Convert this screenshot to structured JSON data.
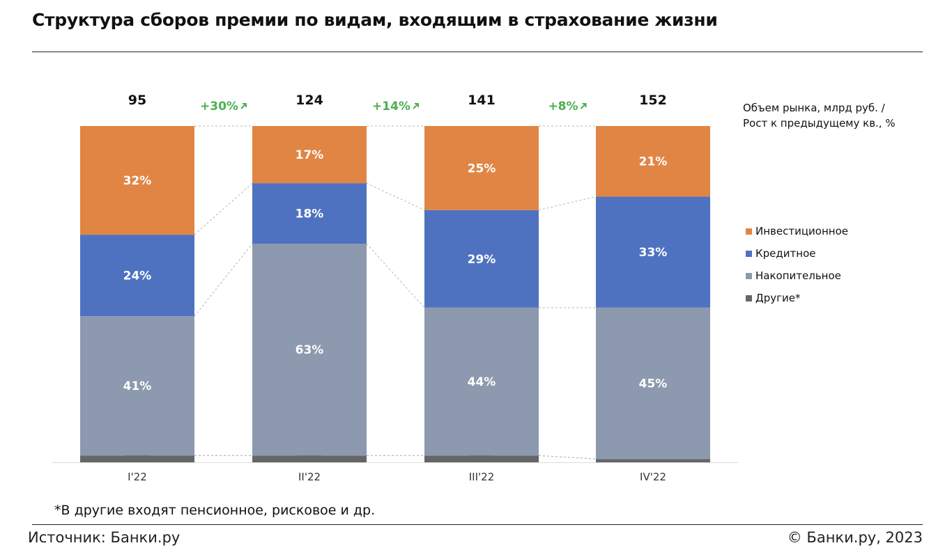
{
  "header": {
    "title": "Структура сборов премии по видам, входящим в страхование жизни"
  },
  "legend": {
    "title_line1": "Объем рынка, млрд руб. /",
    "title_line2": "Рост к предыдущему кв., %",
    "items": [
      {
        "label": "Инвестиционное",
        "color": "#e08544"
      },
      {
        "label": "Кредитное",
        "color": "#4f72c0"
      },
      {
        "label": "Накопительное",
        "color": "#8c99ae"
      },
      {
        "label": "Другие*",
        "color": "#666666"
      }
    ]
  },
  "footer": {
    "footnote": "*В другие входят пенсионное, рисковое и др.",
    "source": "Источник: Банки.ру",
    "copyright": "© Банки.ру, 2023"
  },
  "chart_data": {
    "type": "bar",
    "stacked": "percent",
    "categories": [
      "I'22",
      "II'22",
      "III'22",
      "IV'22"
    ],
    "totals": [
      95,
      124,
      141,
      152
    ],
    "growth_labels": [
      "+30%",
      "+14%",
      "+8%"
    ],
    "series": [
      {
        "name": "Другие*",
        "values": [
          2,
          2,
          2,
          1
        ],
        "labels": [
          "2%",
          "2%",
          "2%",
          "1%"
        ],
        "color": "#666666"
      },
      {
        "name": "Накопительное",
        "values": [
          41,
          63,
          44,
          45
        ],
        "labels": [
          "41%",
          "63%",
          "44%",
          "45%"
        ],
        "color": "#8c99ae"
      },
      {
        "name": "Кредитное",
        "values": [
          24,
          18,
          29,
          33
        ],
        "labels": [
          "24%",
          "18%",
          "29%",
          "33%"
        ],
        "color": "#4f72c0"
      },
      {
        "name": "Инвестиционное",
        "values": [
          32,
          17,
          25,
          21
        ],
        "labels": [
          "32%",
          "17%",
          "25%",
          "21%"
        ],
        "color": "#e08544"
      }
    ],
    "ylim": [
      0,
      100
    ],
    "grid": false,
    "legend_position": "right"
  }
}
